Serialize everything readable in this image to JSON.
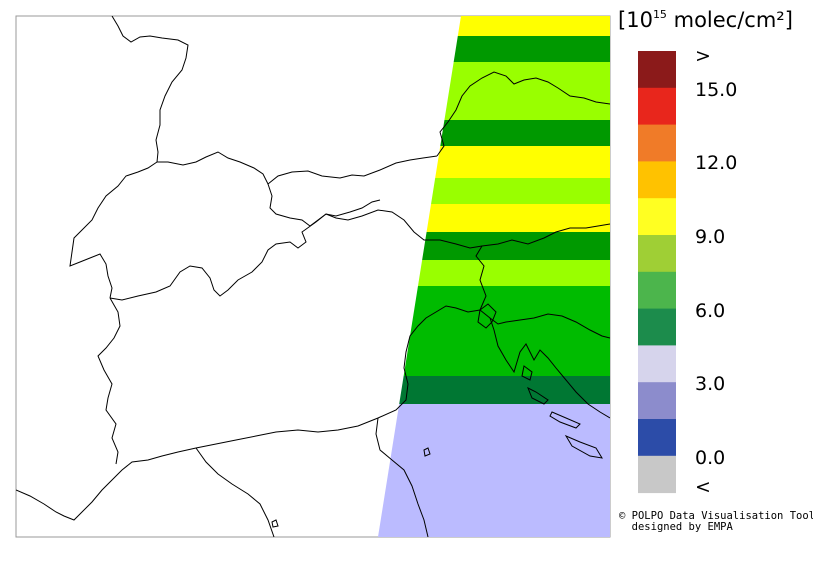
{
  "legend": {
    "unit_prefix": "10",
    "unit_exponent": "15",
    "unit_suffix": "molec/cm²",
    "open": "[",
    "close": "]",
    "labels": [
      ">",
      "15.0",
      "12.0",
      "9.0",
      "6.0",
      "3.0",
      "0.0",
      "<"
    ],
    "colors": [
      "#8b1a1a",
      "#e8261c",
      "#f07b28",
      "#ffc200",
      "#ffff22",
      "#9fcf35",
      "#4cb54c",
      "#1c8c4c",
      "#d6d4ec",
      "#8c8ccc",
      "#2c4ca8",
      "#c8c8c8"
    ]
  },
  "swath": {
    "band_colors": [
      "#ffff00",
      "#009900",
      "#99ff00",
      "#009900",
      "#ffff00",
      "#99ff00",
      "#ffff00",
      "#009900",
      "#99ff00",
      "#00bb00",
      "#007733",
      "#bbbbff"
    ]
  },
  "credit": {
    "line1": "POLPO Data Visualisation Tool",
    "line2": "designed by EMPA",
    "symbol": "©"
  }
}
